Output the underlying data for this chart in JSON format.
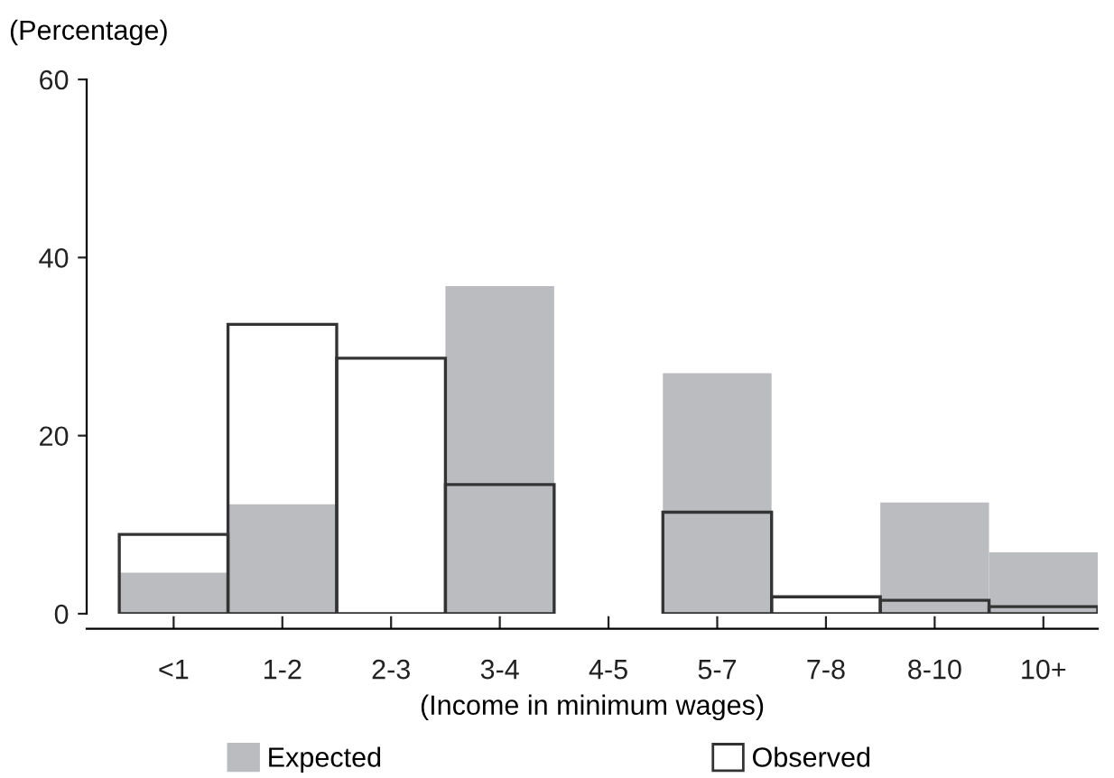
{
  "chart_data": {
    "type": "bar",
    "ylabel": "(Percentage)",
    "xlabel": "(Income in minimum wages)",
    "categories": [
      "<1",
      "1-2",
      "2-3",
      "3-4",
      "4-5",
      "5-7",
      "7-8",
      "8-10",
      "10+"
    ],
    "series": [
      {
        "name": "Expected",
        "color": "#bbbcc0",
        "values": [
          4.6,
          12.3,
          null,
          36.8,
          null,
          27.0,
          null,
          12.5,
          6.9
        ]
      },
      {
        "name": "Observed",
        "color": "#333333",
        "values": [
          8.9,
          32.5,
          28.7,
          14.5,
          null,
          11.4,
          1.9,
          1.5,
          0.8
        ]
      }
    ],
    "ylim": [
      0,
      60
    ],
    "yticks": [
      0,
      20,
      40,
      60
    ],
    "grid": false,
    "legend": "bottom"
  }
}
